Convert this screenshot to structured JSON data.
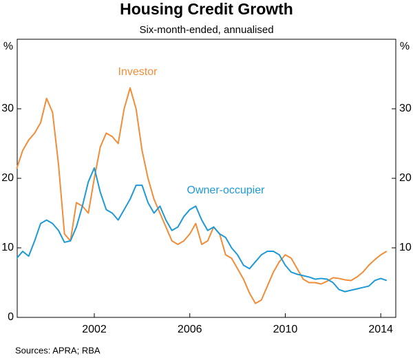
{
  "chart_data": {
    "type": "line",
    "title": "Housing Credit Growth",
    "subtitle": "Six-month-ended, annualised",
    "y_label": "%",
    "y2_label": "%",
    "annotations": [
      "Investor",
      "Owner-occupier"
    ],
    "source": "Sources:   APRA; RBA",
    "xlim": [
      1998.77,
      2014.63
    ],
    "xticks": [
      2002,
      2006,
      2010,
      2014
    ],
    "ylim": [
      0,
      40
    ],
    "yticks": [
      0,
      10,
      20,
      30
    ],
    "y2lim": [
      0,
      40
    ],
    "y2ticks": [
      10,
      20,
      30
    ],
    "grid": false,
    "x": [
      1998.75,
      1999.0,
      1999.25,
      1999.5,
      1999.75,
      2000.0,
      2000.25,
      2000.5,
      2000.75,
      2001.0,
      2001.25,
      2001.5,
      2001.75,
      2002.0,
      2002.25,
      2002.5,
      2002.75,
      2003.0,
      2003.25,
      2003.5,
      2003.75,
      2004.0,
      2004.25,
      2004.5,
      2004.75,
      2005.0,
      2005.25,
      2005.5,
      2005.75,
      2006.0,
      2006.25,
      2006.5,
      2006.75,
      2007.0,
      2007.25,
      2007.5,
      2007.75,
      2008.0,
      2008.25,
      2008.5,
      2008.75,
      2009.0,
      2009.25,
      2009.5,
      2009.75,
      2010.0,
      2010.25,
      2010.5,
      2010.75,
      2011.0,
      2011.25,
      2011.5,
      2011.75,
      2012.0,
      2012.25,
      2012.5,
      2012.75,
      2013.0,
      2013.25,
      2013.5,
      2013.75,
      2014.0,
      2014.25
    ],
    "series": [
      {
        "name": "Investor",
        "color": "#f28c36",
        "values": [
          21.4,
          24,
          25.5,
          26.5,
          28,
          31.5,
          29.5,
          22,
          12,
          11,
          16.5,
          16,
          15,
          20,
          24.5,
          26.5,
          26,
          25,
          30,
          33,
          30,
          24,
          20,
          17,
          15,
          13,
          11,
          10.5,
          11,
          12,
          13.5,
          10.5,
          11,
          13,
          12,
          9,
          8.5,
          7,
          5.5,
          3.5,
          2,
          2.5,
          4.5,
          6.5,
          8,
          9,
          8.5,
          7,
          5.5,
          5,
          5,
          4.8,
          5.2,
          5.7,
          5.6,
          5.4,
          5.3,
          5.8,
          6.5,
          7.5,
          8.3,
          9,
          9.5
        ]
      },
      {
        "name": "Owner-occupier",
        "color": "#1d9ad6",
        "values": [
          8.5,
          9.5,
          8.8,
          11,
          13.5,
          14,
          13.5,
          12.5,
          10.8,
          11,
          13,
          16,
          19.5,
          21.5,
          18,
          15.5,
          15,
          14,
          15.5,
          17,
          19,
          19,
          16.5,
          15,
          16,
          14,
          12.5,
          13,
          14.5,
          15.5,
          16,
          14,
          12.5,
          13,
          12,
          11.5,
          10,
          9,
          7.5,
          7,
          8,
          9,
          9.5,
          9.5,
          9,
          7.5,
          6.5,
          6.2,
          6,
          5.8,
          5.5,
          5.6,
          5.5,
          5,
          4,
          3.7,
          3.9,
          4.1,
          4.3,
          4.5,
          5.3,
          5.6,
          5.3
        ]
      }
    ]
  }
}
